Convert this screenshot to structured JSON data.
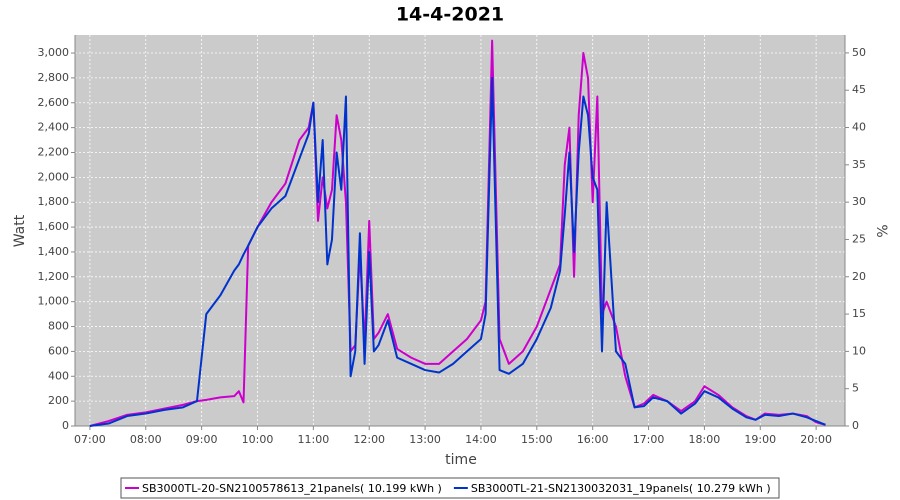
{
  "chart_data": {
    "type": "line",
    "title": "14-4-2021",
    "x_label": "time",
    "y_label": "Watt",
    "y2_label": "%",
    "x": [
      "07:00",
      "07:20",
      "07:40",
      "08:00",
      "08:20",
      "08:40",
      "08:55",
      "09:05",
      "09:20",
      "09:35",
      "09:40",
      "09:45",
      "09:50",
      "10:00",
      "10:15",
      "10:30",
      "10:45",
      "10:55",
      "11:00",
      "11:05",
      "11:10",
      "11:15",
      "11:20",
      "11:25",
      "11:30",
      "11:35",
      "11:40",
      "11:45",
      "11:50",
      "11:55",
      "12:00",
      "12:05",
      "12:10",
      "12:20",
      "12:30",
      "12:45",
      "13:00",
      "13:15",
      "13:30",
      "13:45",
      "14:00",
      "14:05",
      "14:12",
      "14:20",
      "14:30",
      "14:45",
      "15:00",
      "15:15",
      "15:25",
      "15:30",
      "15:35",
      "15:40",
      "15:45",
      "15:50",
      "15:55",
      "16:00",
      "16:05",
      "16:10",
      "16:15",
      "16:25",
      "16:35",
      "16:45",
      "16:55",
      "17:05",
      "17:20",
      "17:35",
      "17:50",
      "18:00",
      "18:15",
      "18:30",
      "18:45",
      "18:55",
      "19:05",
      "19:20",
      "19:35",
      "19:50",
      "20:00",
      "20:10"
    ],
    "series": [
      {
        "name": "SB3000TL-20-SN2100578613_21panels( 10.199 kWh )",
        "color": "#cc00cc",
        "values": [
          0,
          40,
          90,
          110,
          140,
          170,
          200,
          210,
          230,
          240,
          280,
          190,
          1450,
          1600,
          1800,
          1950,
          2300,
          2400,
          2600,
          1650,
          2000,
          1750,
          1900,
          2500,
          2300,
          1800,
          600,
          650,
          1400,
          650,
          1650,
          700,
          750,
          900,
          620,
          550,
          500,
          500,
          600,
          700,
          850,
          1000,
          3100,
          700,
          500,
          600,
          800,
          1100,
          1300,
          2100,
          2400,
          1200,
          2500,
          3000,
          2800,
          1800,
          2650,
          900,
          1000,
          800,
          400,
          150,
          180,
          250,
          200,
          120,
          200,
          320,
          250,
          150,
          80,
          50,
          100,
          90,
          100,
          80,
          30,
          10
        ]
      },
      {
        "name": "SB3000TL-21-SN2130032031_19panels( 10.279 kWh )",
        "color": "#0033cc",
        "values": [
          0,
          20,
          80,
          100,
          130,
          150,
          200,
          900,
          1050,
          1250,
          1300,
          1380,
          1450,
          1600,
          1750,
          1850,
          2150,
          2350,
          2600,
          1800,
          2300,
          1300,
          1500,
          2200,
          1900,
          2650,
          400,
          600,
          1550,
          500,
          1400,
          600,
          650,
          850,
          550,
          500,
          450,
          430,
          500,
          600,
          700,
          900,
          2800,
          450,
          420,
          500,
          700,
          950,
          1250,
          1700,
          2200,
          1400,
          2200,
          2650,
          2500,
          2000,
          1900,
          600,
          1800,
          600,
          500,
          150,
          160,
          230,
          200,
          100,
          180,
          280,
          230,
          140,
          70,
          50,
          90,
          80,
          100,
          70,
          40,
          10
        ]
      }
    ],
    "xlim": [
      "06:44",
      "20:31"
    ],
    "xticks": [
      "07:00",
      "08:00",
      "09:00",
      "10:00",
      "11:00",
      "12:00",
      "13:00",
      "14:00",
      "15:00",
      "16:00",
      "17:00",
      "18:00",
      "19:00",
      "20:00"
    ],
    "ylim": [
      0,
      3145
    ],
    "yticks": [
      0,
      200,
      400,
      600,
      800,
      {
        "value": 1000,
        "label": "1,000"
      },
      {
        "value": 1200,
        "label": "1,200"
      },
      {
        "value": 1400,
        "label": "1,400"
      },
      {
        "value": 1600,
        "label": "1,600"
      },
      {
        "value": 1800,
        "label": "1,800"
      },
      {
        "value": 2000,
        "label": "2,000"
      },
      {
        "value": 2200,
        "label": "2,200"
      },
      {
        "value": 2400,
        "label": "2,400"
      },
      {
        "value": 2600,
        "label": "2,600"
      },
      {
        "value": 2800,
        "label": "2,800"
      },
      {
        "value": 3000,
        "label": "3,000"
      }
    ],
    "y2lim": [
      0,
      52.4
    ],
    "y2ticks": [
      0,
      5,
      10,
      15,
      20,
      25,
      30,
      35,
      40,
      45,
      50
    ],
    "grid": true,
    "legend": "bottom"
  }
}
